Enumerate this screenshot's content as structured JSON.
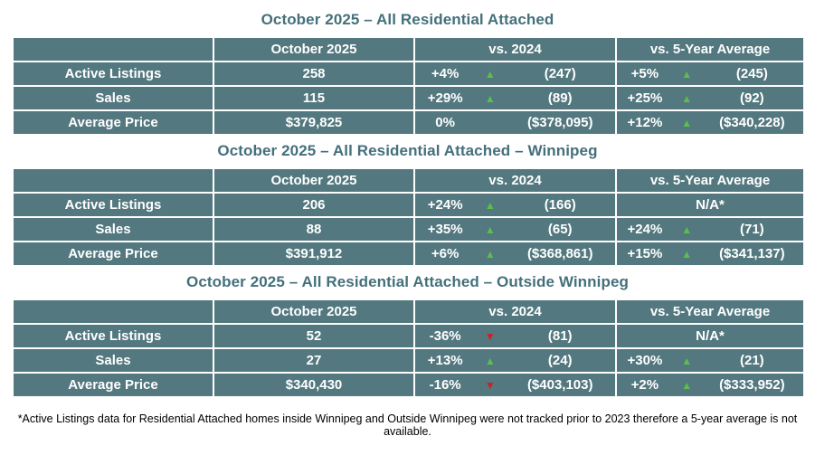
{
  "colors": {
    "cell_background": "#53787f",
    "title_text": "#44707b",
    "cell_text": "#ffffff",
    "up_arrow": "#5bbf4a",
    "down_arrow": "#cd2026",
    "border": "#ffffff"
  },
  "icons": {
    "up_arrow": "▲",
    "down_arrow": "▼"
  },
  "footnote": "*Active Listings data for Residential Attached homes inside Winnipeg and Outside Winnipeg were not tracked prior to 2023 therefore a 5-year average is not available.",
  "chart_data": [
    {
      "type": "table",
      "title": "October 2025 – All Residential Attached",
      "columns": [
        "",
        "October 2025",
        "vs. 2024",
        "vs. 5-Year Average"
      ],
      "rows": [
        {
          "label": "Active Listings",
          "current": "258",
          "vs2024": {
            "pct": "+4%",
            "dir": "up",
            "val": "(247)"
          },
          "vs5yr": {
            "pct": "+5%",
            "dir": "up",
            "val": "(245)"
          }
        },
        {
          "label": "Sales",
          "current": "115",
          "vs2024": {
            "pct": "+29%",
            "dir": "up",
            "val": "(89)"
          },
          "vs5yr": {
            "pct": "+25%",
            "dir": "up",
            "val": "(92)"
          }
        },
        {
          "label": "Average Price",
          "current": "$379,825",
          "vs2024": {
            "pct": "0%",
            "dir": "none",
            "val": "($378,095)"
          },
          "vs5yr": {
            "pct": "+12%",
            "dir": "up",
            "val": "($340,228)"
          }
        }
      ]
    },
    {
      "type": "table",
      "title": "October 2025 – All Residential Attached – Winnipeg",
      "columns": [
        "",
        "October 2025",
        "vs. 2024",
        "vs. 5-Year Average"
      ],
      "rows": [
        {
          "label": "Active Listings",
          "current": "206",
          "vs2024": {
            "pct": "+24%",
            "dir": "up",
            "val": "(166)"
          },
          "vs5yr": {
            "na": "N/A*"
          }
        },
        {
          "label": "Sales",
          "current": "88",
          "vs2024": {
            "pct": "+35%",
            "dir": "up",
            "val": "(65)"
          },
          "vs5yr": {
            "pct": "+24%",
            "dir": "up",
            "val": "(71)"
          }
        },
        {
          "label": "Average Price",
          "current": "$391,912",
          "vs2024": {
            "pct": "+6%",
            "dir": "up",
            "val": "($368,861)"
          },
          "vs5yr": {
            "pct": "+15%",
            "dir": "up",
            "val": "($341,137)"
          }
        }
      ]
    },
    {
      "type": "table",
      "title": "October 2025 – All Residential Attached – Outside Winnipeg",
      "columns": [
        "",
        "October 2025",
        "vs. 2024",
        "vs. 5-Year Average"
      ],
      "rows": [
        {
          "label": "Active Listings",
          "current": "52",
          "vs2024": {
            "pct": "-36%",
            "dir": "down",
            "val": "(81)"
          },
          "vs5yr": {
            "na": "N/A*"
          }
        },
        {
          "label": "Sales",
          "current": "27",
          "vs2024": {
            "pct": "+13%",
            "dir": "up",
            "val": "(24)"
          },
          "vs5yr": {
            "pct": "+30%",
            "dir": "up",
            "val": "(21)"
          }
        },
        {
          "label": "Average Price",
          "current": "$340,430",
          "vs2024": {
            "pct": "-16%",
            "dir": "down",
            "val": "($403,103)"
          },
          "vs5yr": {
            "pct": "+2%",
            "dir": "up",
            "val": "($333,952)"
          }
        }
      ]
    }
  ]
}
